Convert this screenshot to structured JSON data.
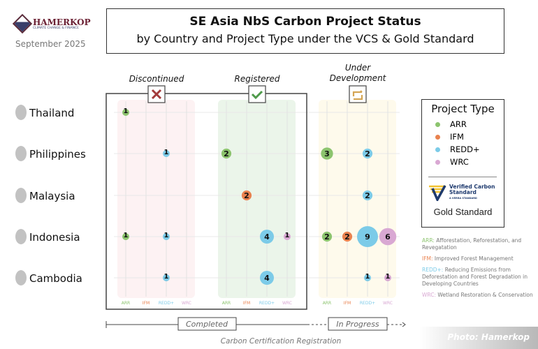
{
  "header": {
    "logo_name": "HAMERKOP",
    "logo_sub": "CLIMATE CHANGE & FINANCE",
    "date": "September 2025",
    "title": "SE Asia NbS Carbon Project Status",
    "subtitle": "by Country and Project Type under the VCS & Gold Standard"
  },
  "chart_data": {
    "type": "scatter",
    "title": "SE Asia NbS Carbon Project Status",
    "subtitle": "by Country and Project Type under the VCS & Gold Standard",
    "xlabel": "Carbon Certification Registration",
    "statuses": [
      "Discontinued",
      "Registered",
      "Under Development"
    ],
    "types": [
      "ARR",
      "IFM",
      "REDD+",
      "WRC"
    ],
    "countries": [
      "Thailand",
      "Philippines",
      "Malaysia",
      "Indonesia",
      "Cambodia"
    ],
    "colors": {
      "ARR": "#8cc46e",
      "IFM": "#e9824f",
      "REDD+": "#7ccbe8",
      "WRC": "#d9a8d3"
    },
    "points": [
      {
        "country": "Thailand",
        "status": "Discontinued",
        "type": "ARR",
        "count": 1
      },
      {
        "country": "Philippines",
        "status": "Discontinued",
        "type": "REDD+",
        "count": 1
      },
      {
        "country": "Philippines",
        "status": "Registered",
        "type": "ARR",
        "count": 2
      },
      {
        "country": "Philippines",
        "status": "Under Development",
        "type": "ARR",
        "count": 3
      },
      {
        "country": "Philippines",
        "status": "Under Development",
        "type": "REDD+",
        "count": 2
      },
      {
        "country": "Malaysia",
        "status": "Registered",
        "type": "IFM",
        "count": 2
      },
      {
        "country": "Malaysia",
        "status": "Under Development",
        "type": "REDD+",
        "count": 2
      },
      {
        "country": "Indonesia",
        "status": "Discontinued",
        "type": "ARR",
        "count": 1
      },
      {
        "country": "Indonesia",
        "status": "Discontinued",
        "type": "REDD+",
        "count": 1
      },
      {
        "country": "Indonesia",
        "status": "Registered",
        "type": "REDD+",
        "count": 4
      },
      {
        "country": "Indonesia",
        "status": "Registered",
        "type": "WRC",
        "count": 1
      },
      {
        "country": "Indonesia",
        "status": "Under Development",
        "type": "ARR",
        "count": 2
      },
      {
        "country": "Indonesia",
        "status": "Under Development",
        "type": "IFM",
        "count": 2
      },
      {
        "country": "Indonesia",
        "status": "Under Development",
        "type": "REDD+",
        "count": 9
      },
      {
        "country": "Indonesia",
        "status": "Under Development",
        "type": "WRC",
        "count": 6
      },
      {
        "country": "Cambodia",
        "status": "Discontinued",
        "type": "REDD+",
        "count": 1
      },
      {
        "country": "Cambodia",
        "status": "Registered",
        "type": "REDD+",
        "count": 4
      },
      {
        "country": "Cambodia",
        "status": "Under Development",
        "type": "REDD+",
        "count": 1
      },
      {
        "country": "Cambodia",
        "status": "Under Development",
        "type": "WRC",
        "count": 1
      }
    ],
    "phases": [
      "Completed",
      "In Progress"
    ]
  },
  "legend": {
    "title": "Project Type",
    "items": [
      "ARR",
      "IFM",
      "REDD+",
      "WRC"
    ],
    "vcs_line1": "Verified Carbon",
    "vcs_line2": "Standard",
    "vcs_sub": "A VERRA STANDARD",
    "gold": "Gold Standard"
  },
  "definitions": [
    {
      "abbr": "ARR:",
      "text": " Afforestation, Reforestation, and Revegatation"
    },
    {
      "abbr": "IFM:",
      "text": " Improved Forest Management"
    },
    {
      "abbr": "REDD+:",
      "text": " Reducing Emissions from Deforestation and Forest Degradation in Developing Countries"
    },
    {
      "abbr": "WRC:",
      "text": " Wetland Restoration & Conservation"
    }
  ],
  "credit": "Photo: Hamerkop"
}
